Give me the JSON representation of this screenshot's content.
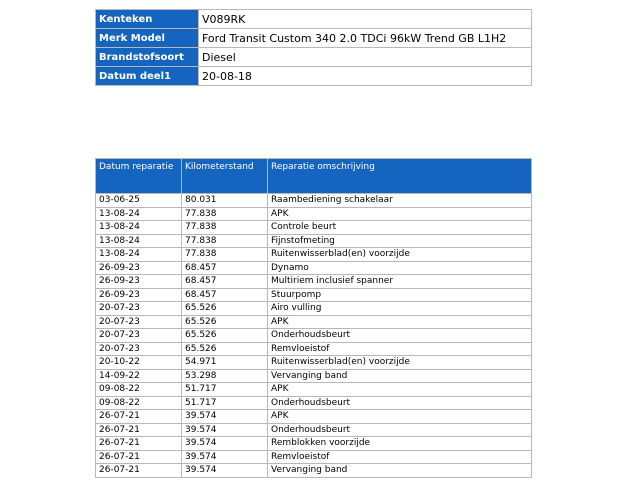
{
  "vehicle": {
    "rows": [
      [
        "Kenteken",
        "V089RK"
      ],
      [
        "Merk Model",
        "Ford Transit Custom 340 2.0 TDCi 96kW Trend GB L1H2"
      ],
      [
        "Brandstofsoort",
        "Diesel"
      ],
      [
        "Datum deel1",
        "20-08-18"
      ]
    ]
  },
  "repairs": {
    "columns": [
      "Datum reparatie",
      "Kilometerstand",
      "Reparatie omschrijving"
    ],
    "rows": [
      [
        "03-06-25",
        "80.031",
        "Raambediening schakelaar"
      ],
      [
        "13-08-24",
        "77.838",
        "APK"
      ],
      [
        "13-08-24",
        "77.838",
        "Controle beurt"
      ],
      [
        "13-08-24",
        "77.838",
        "Fijnstofmeting"
      ],
      [
        "13-08-24",
        "77.838",
        "Ruitenwisserblad(en) voorzijde"
      ],
      [
        "26-09-23",
        "68.457",
        "Dynamo"
      ],
      [
        "26-09-23",
        "68.457",
        "Multiriem inclusief spanner"
      ],
      [
        "26-09-23",
        "68.457",
        "Stuurpomp"
      ],
      [
        "20-07-23",
        "65.526",
        "Airo vulling"
      ],
      [
        "20-07-23",
        "65.526",
        "APK"
      ],
      [
        "20-07-23",
        "65.526",
        "Onderhoudsbeurt"
      ],
      [
        "20-07-23",
        "65.526",
        "Remvloeistof"
      ],
      [
        "20-10-22",
        "54.971",
        "Ruitenwisserblad(en) voorzijde"
      ],
      [
        "14-09-22",
        "53.298",
        "Vervanging band"
      ],
      [
        "09-08-22",
        "51.717",
        "APK"
      ],
      [
        "09-08-22",
        "51.717",
        "Onderhoudsbeurt"
      ],
      [
        "26-07-21",
        "39.574",
        "APK"
      ],
      [
        "26-07-21",
        "39.574",
        "Onderhoudsbeurt"
      ],
      [
        "26-07-21",
        "39.574",
        "Remblokken voorzijde"
      ],
      [
        "26-07-21",
        "39.574",
        "Remvloeistof"
      ],
      [
        "26-07-21",
        "39.574",
        "Vervanging band"
      ]
    ]
  }
}
